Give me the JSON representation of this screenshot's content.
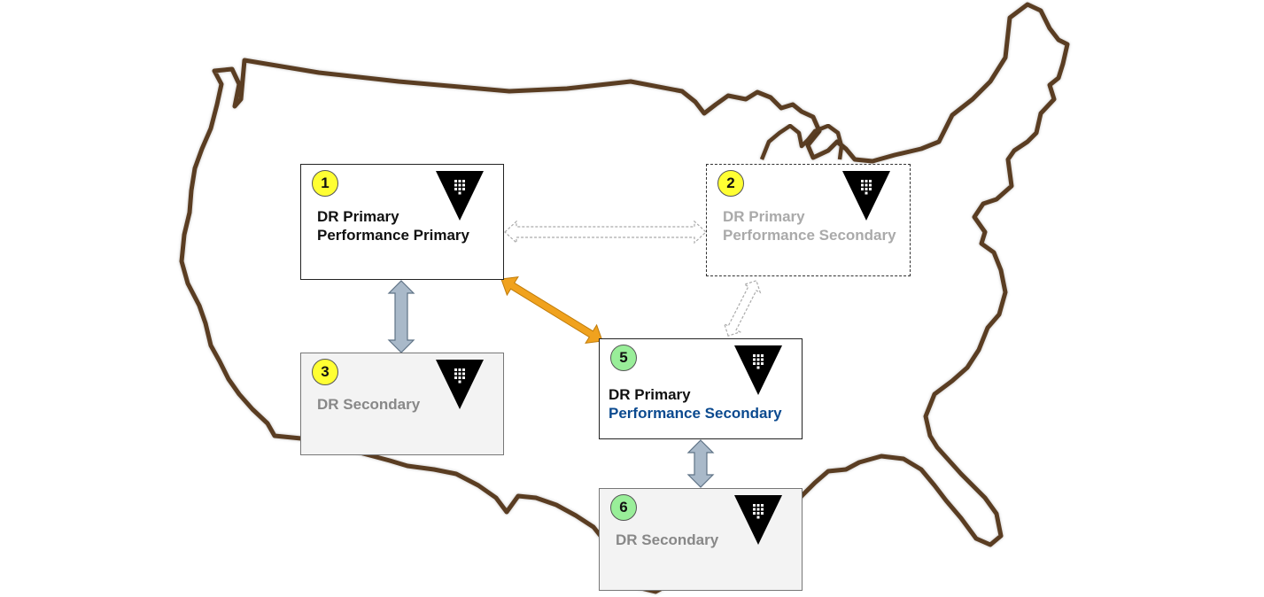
{
  "nodes": [
    {
      "id": "n1",
      "number": "1",
      "line1": "DR Primary",
      "line2": "Performance Primary"
    },
    {
      "id": "n2",
      "number": "2",
      "line1": "DR Primary",
      "line2": "Performance Secondary"
    },
    {
      "id": "n3",
      "number": "3",
      "line1": "DR Secondary",
      "line2": ""
    },
    {
      "id": "n5",
      "number": "5",
      "line1": "DR Primary",
      "line2": "Performance Secondary"
    },
    {
      "id": "n6",
      "number": "6",
      "line1": "DR Secondary",
      "line2": ""
    }
  ],
  "colors": {
    "badge_yellow": "#ffff33",
    "badge_green": "#99ee99",
    "text_black": "#111111",
    "text_gray": "#888888",
    "text_light_gray": "#aaaaaa",
    "text_blue": "#0b4a8f",
    "map_outline": "#5a3d23",
    "arrow_orange": "#f0a21e",
    "arrow_blue_gray": "#a9b9c9",
    "secondary_fill": "#f3f3f3"
  },
  "icons": {
    "vault_logo": "vault-logo-icon"
  }
}
